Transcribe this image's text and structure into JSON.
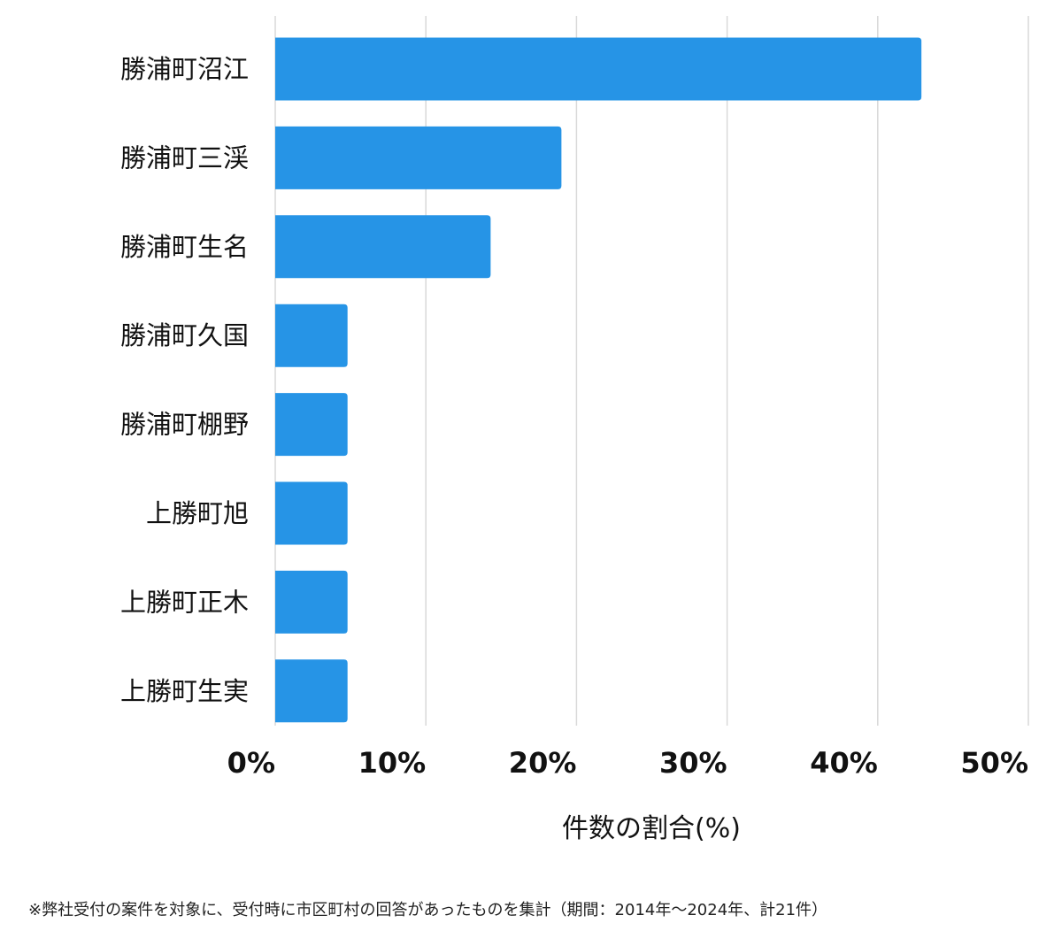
{
  "chart_data": {
    "type": "bar",
    "orientation": "horizontal",
    "categories": [
      "勝浦町沼江",
      "勝浦町三渓",
      "勝浦町生名",
      "勝浦町久国",
      "勝浦町棚野",
      "上勝町旭",
      "上勝町正木",
      "上勝町生実"
    ],
    "values": [
      42.9,
      19.0,
      14.3,
      4.8,
      4.8,
      4.8,
      4.8,
      4.8
    ],
    "xlim": [
      0,
      50
    ],
    "xticks": [
      0,
      10,
      20,
      30,
      40,
      50
    ],
    "tick_labels": [
      "0%",
      "10%",
      "20%",
      "30%",
      "40%",
      "50%"
    ],
    "xlabel": "件数の割合(%)",
    "grid": "vertical",
    "bar_color": "#2694e6",
    "grid_color": "#d9d9d9"
  },
  "footnote": "※弊社受付の案件を対象に、受付時に市区町村の回答があったものを集計（期間：2014年～2024年、計21件）"
}
